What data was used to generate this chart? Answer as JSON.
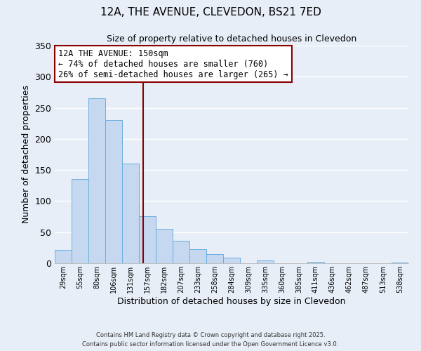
{
  "title": "12A, THE AVENUE, CLEVEDON, BS21 7ED",
  "subtitle": "Size of property relative to detached houses in Clevedon",
  "xlabel": "Distribution of detached houses by size in Clevedon",
  "ylabel": "Number of detached properties",
  "bin_labels": [
    "29sqm",
    "55sqm",
    "80sqm",
    "106sqm",
    "131sqm",
    "157sqm",
    "182sqm",
    "207sqm",
    "233sqm",
    "258sqm",
    "284sqm",
    "309sqm",
    "335sqm",
    "360sqm",
    "385sqm",
    "411sqm",
    "436sqm",
    "462sqm",
    "487sqm",
    "513sqm",
    "538sqm"
  ],
  "bar_values": [
    22,
    135,
    265,
    230,
    160,
    76,
    55,
    36,
    23,
    15,
    9,
    0,
    5,
    0,
    0,
    2,
    0,
    0,
    0,
    0,
    1
  ],
  "bar_color": "#c5d8f0",
  "bar_edgecolor": "#6aaee0",
  "annotation_title": "12A THE AVENUE: 150sqm",
  "annotation_line1": "← 74% of detached houses are smaller (760)",
  "annotation_line2": "26% of semi-detached houses are larger (265) →",
  "annotation_box_color": "#ffffff",
  "annotation_box_edgecolor": "#8b0000",
  "vline_color": "#8b0000",
  "ylim": [
    0,
    350
  ],
  "yticks": [
    0,
    50,
    100,
    150,
    200,
    250,
    300,
    350
  ],
  "footnote1": "Contains HM Land Registry data © Crown copyright and database right 2025.",
  "footnote2": "Contains public sector information licensed under the Open Government Licence v3.0.",
  "background_color": "#e8eef8",
  "grid_color": "#ffffff",
  "bin_numeric": [
    29,
    55,
    80,
    106,
    131,
    157,
    182,
    207,
    233,
    258,
    284,
    309,
    335,
    360,
    385,
    411,
    436,
    462,
    487,
    513,
    538
  ],
  "vline_sqm": 150
}
